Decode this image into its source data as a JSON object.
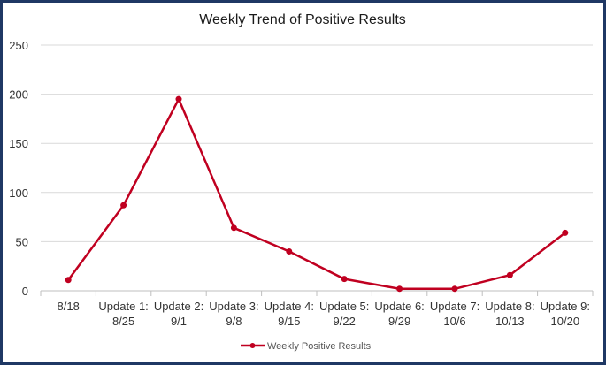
{
  "chart_data": {
    "type": "line",
    "title": "Weekly Trend of Positive Results",
    "xlabel": "",
    "ylabel": "",
    "ylim": [
      0,
      250
    ],
    "yticks": [
      0,
      50,
      100,
      150,
      200,
      250
    ],
    "grid": true,
    "legend_position": "bottom",
    "categories": [
      [
        "8/18"
      ],
      [
        "Update 1:",
        "8/25"
      ],
      [
        "Update 2:",
        "9/1"
      ],
      [
        "Update 3:",
        "9/8"
      ],
      [
        "Update 4:",
        "9/15"
      ],
      [
        "Update 5:",
        "9/22"
      ],
      [
        "Update 6:",
        "9/29"
      ],
      [
        "Update 7:",
        "10/6"
      ],
      [
        "Update 8:",
        "10/13"
      ],
      [
        "Update 9:",
        "10/20"
      ]
    ],
    "series": [
      {
        "name": "Weekly Positive Results",
        "color": "#c00020",
        "values": [
          11,
          87,
          195,
          64,
          40,
          12,
          2,
          2,
          16,
          59
        ]
      }
    ]
  }
}
